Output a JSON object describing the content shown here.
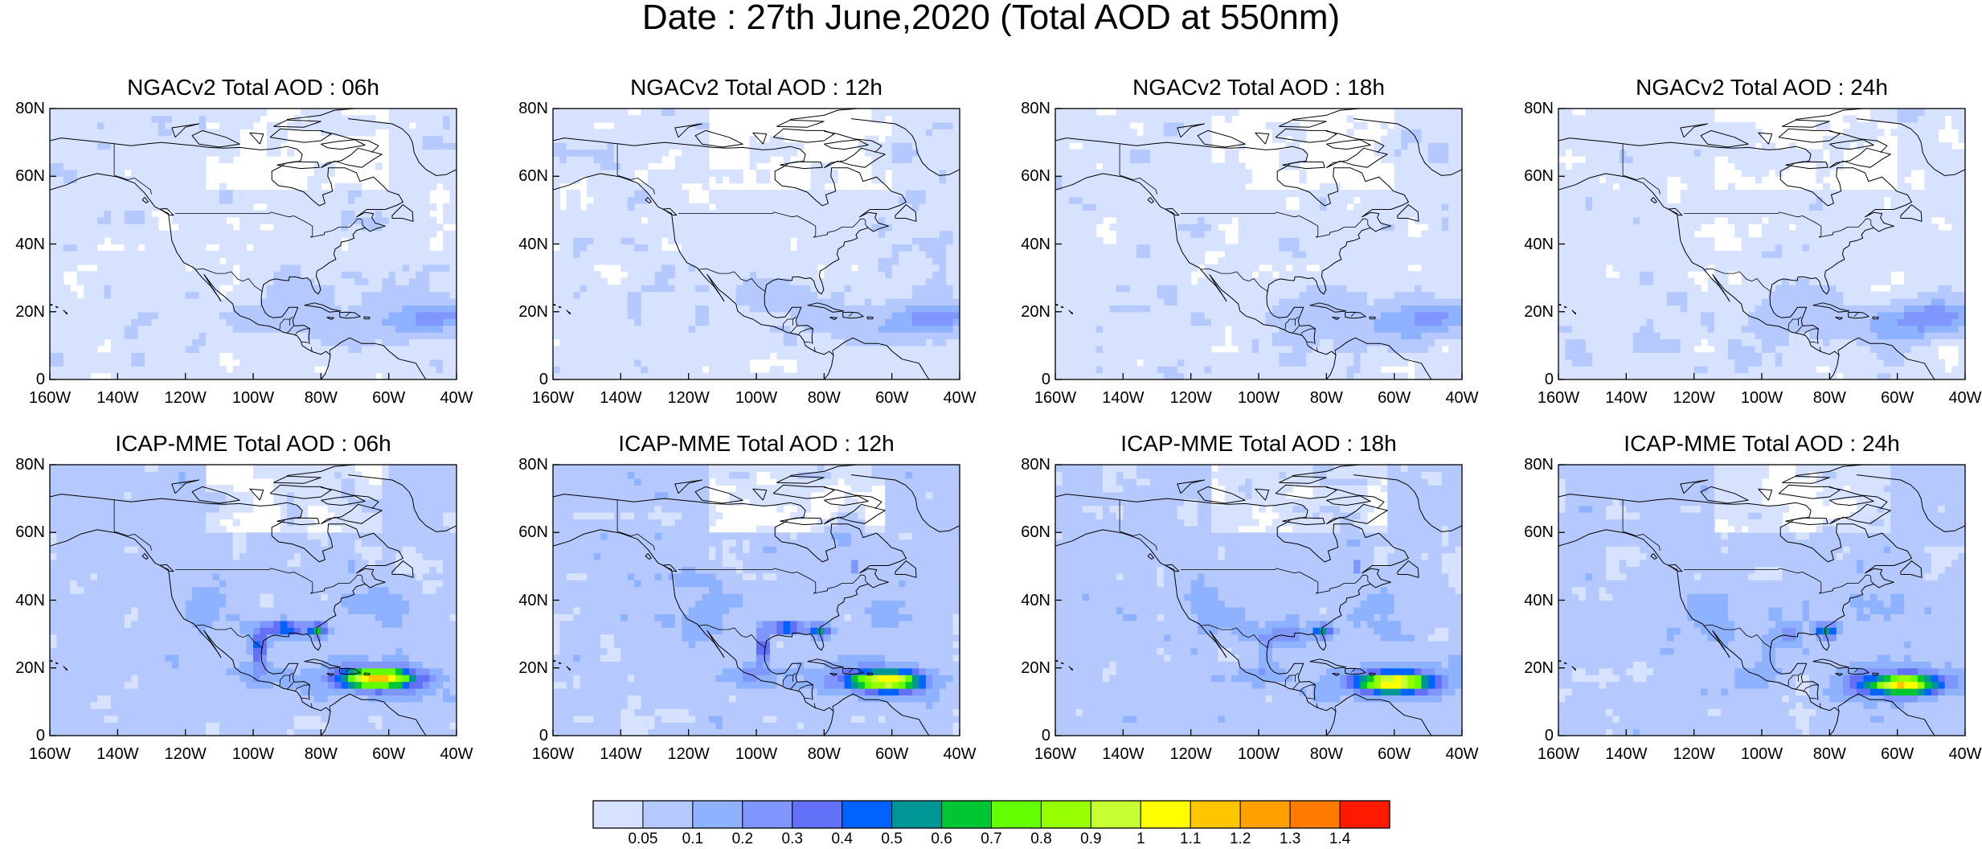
{
  "title": "Date : 27th June,2020 (Total AOD at 550nm)",
  "lat_labels": [
    "80N",
    "60N",
    "40N",
    "20N",
    "0"
  ],
  "lon_labels": [
    "160W",
    "140W",
    "120W",
    "100W",
    "80W",
    "60W",
    "40W"
  ],
  "lat_range": [
    0,
    80
  ],
  "lon_range": [
    -160,
    -40
  ],
  "panels": [
    {
      "title": "NGACv2 Total AOD : 06h",
      "model": "NGACv2",
      "hour": 6
    },
    {
      "title": "NGACv2 Total AOD : 12h",
      "model": "NGACv2",
      "hour": 12
    },
    {
      "title": "NGACv2 Total AOD : 18h",
      "model": "NGACv2",
      "hour": 18
    },
    {
      "title": "NGACv2 Total AOD : 24h",
      "model": "NGACv2",
      "hour": 24
    },
    {
      "title": "ICAP-MME Total AOD : 06h",
      "model": "ICAP-MME",
      "hour": 6
    },
    {
      "title": "ICAP-MME Total AOD : 12h",
      "model": "ICAP-MME",
      "hour": 12
    },
    {
      "title": "ICAP-MME Total AOD : 18h",
      "model": "ICAP-MME",
      "hour": 18
    },
    {
      "title": "ICAP-MME Total AOD : 24h",
      "model": "ICAP-MME",
      "hour": 24
    }
  ],
  "colorbar": {
    "labels": [
      "0.05",
      "0.1",
      "0.2",
      "0.3",
      "0.4",
      "0.5",
      "0.6",
      "0.7",
      "0.8",
      "0.9",
      "1",
      "1.1",
      "1.2",
      "1.3",
      "1.4"
    ],
    "colors": [
      "#ffffff",
      "#d6e2ff",
      "#b5c9ff",
      "#8eb2ff",
      "#7f96ff",
      "#6370f8",
      "#0063ff",
      "#009696",
      "#00c633",
      "#63ff00",
      "#96ff00",
      "#c6ff33",
      "#ffff00",
      "#ffc600",
      "#ffa000",
      "#ff7c00",
      "#ff1900"
    ]
  }
}
